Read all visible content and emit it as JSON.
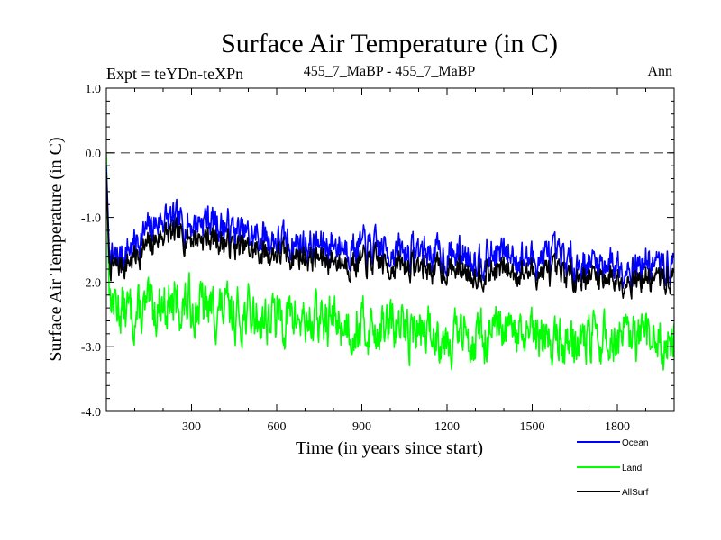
{
  "chart_data": {
    "type": "line",
    "title": "Surface Air Temperature (in C)",
    "subtitle_left": "Expt = teYDn-teXPn",
    "subtitle_center": "455_7_MaBP - 455_7_MaBP",
    "subtitle_right": "Ann",
    "xlabel": "Time (in years since start)",
    "ylabel": "Surface Air Temperature (in C)",
    "xlim": [
      0,
      2000
    ],
    "ylim": [
      -4.0,
      1.0
    ],
    "x_ticks": [
      300,
      600,
      900,
      1200,
      1500,
      1800
    ],
    "x_tick_labels": [
      "300",
      "600",
      "900",
      "1200",
      "1500",
      "1800"
    ],
    "y_ticks": [
      1.0,
      0.0,
      -1.0,
      -2.0,
      -3.0,
      -4.0
    ],
    "y_tick_labels": [
      "1.0",
      "0.0",
      "-1.0",
      "-2.0",
      "-3.0",
      "-4.0"
    ],
    "reference_line": 0.0,
    "legend_position": "bottom-right",
    "series": [
      {
        "name": "Ocean",
        "color": "#0000ff",
        "x": [
          0,
          10,
          25,
          50,
          75,
          100,
          150,
          200,
          250,
          300,
          350,
          400,
          450,
          500,
          550,
          600,
          650,
          700,
          750,
          800,
          850,
          900,
          950,
          1000,
          1050,
          1100,
          1150,
          1200,
          1250,
          1300,
          1350,
          1400,
          1450,
          1500,
          1550,
          1600,
          1650,
          1700,
          1750,
          1800,
          1850,
          1900,
          1950,
          2000
        ],
        "values": [
          -0.2,
          -1.5,
          -1.7,
          -1.6,
          -1.5,
          -1.4,
          -1.2,
          -1.0,
          -1.1,
          -1.1,
          -1.0,
          -1.1,
          -1.2,
          -1.3,
          -1.3,
          -1.35,
          -1.4,
          -1.4,
          -1.45,
          -1.4,
          -1.45,
          -1.45,
          -1.5,
          -1.5,
          -1.55,
          -1.5,
          -1.55,
          -1.6,
          -1.55,
          -1.6,
          -1.6,
          -1.55,
          -1.6,
          -1.65,
          -1.6,
          -1.65,
          -1.7,
          -1.7,
          -1.7,
          -1.7,
          -1.75,
          -1.7,
          -1.75,
          -1.75
        ],
        "noise": 0.22
      },
      {
        "name": "Land",
        "color": "#00ff00",
        "x": [
          0,
          10,
          25,
          50,
          75,
          100,
          150,
          200,
          250,
          300,
          350,
          400,
          450,
          500,
          550,
          600,
          650,
          700,
          750,
          800,
          850,
          900,
          950,
          1000,
          1050,
          1100,
          1150,
          1200,
          1250,
          1300,
          1350,
          1400,
          1450,
          1500,
          1550,
          1600,
          1650,
          1700,
          1750,
          1800,
          1850,
          1900,
          1950,
          2000
        ],
        "values": [
          0.0,
          -2.2,
          -2.3,
          -2.4,
          -2.45,
          -2.5,
          -2.45,
          -2.3,
          -2.4,
          -2.35,
          -2.4,
          -2.45,
          -2.5,
          -2.5,
          -2.55,
          -2.55,
          -2.55,
          -2.6,
          -2.6,
          -2.6,
          -2.65,
          -2.7,
          -2.7,
          -2.7,
          -2.75,
          -2.75,
          -2.8,
          -2.8,
          -2.85,
          -2.8,
          -2.85,
          -2.85,
          -2.85,
          -2.9,
          -2.85,
          -2.9,
          -2.9,
          -2.9,
          -2.9,
          -2.9,
          -2.95,
          -2.9,
          -2.9,
          -2.9
        ],
        "noise": 0.32
      },
      {
        "name": "AllSurf",
        "color": "#000000",
        "x": [
          0,
          10,
          25,
          50,
          75,
          100,
          150,
          200,
          250,
          300,
          350,
          400,
          450,
          500,
          550,
          600,
          650,
          700,
          750,
          800,
          850,
          900,
          950,
          1000,
          1050,
          1100,
          1150,
          1200,
          1250,
          1300,
          1350,
          1400,
          1450,
          1500,
          1550,
          1600,
          1650,
          1700,
          1750,
          1800,
          1850,
          1900,
          1950,
          2000
        ],
        "values": [
          -0.3,
          -1.7,
          -1.8,
          -1.75,
          -1.7,
          -1.6,
          -1.45,
          -1.25,
          -1.3,
          -1.3,
          -1.3,
          -1.35,
          -1.45,
          -1.5,
          -1.55,
          -1.55,
          -1.6,
          -1.6,
          -1.65,
          -1.65,
          -1.7,
          -1.7,
          -1.7,
          -1.75,
          -1.75,
          -1.75,
          -1.8,
          -1.8,
          -1.8,
          -1.85,
          -1.85,
          -1.8,
          -1.85,
          -1.85,
          -1.85,
          -1.9,
          -1.9,
          -1.9,
          -1.9,
          -1.95,
          -1.95,
          -1.95,
          -1.95,
          -1.95
        ],
        "noise": 0.18
      }
    ]
  }
}
